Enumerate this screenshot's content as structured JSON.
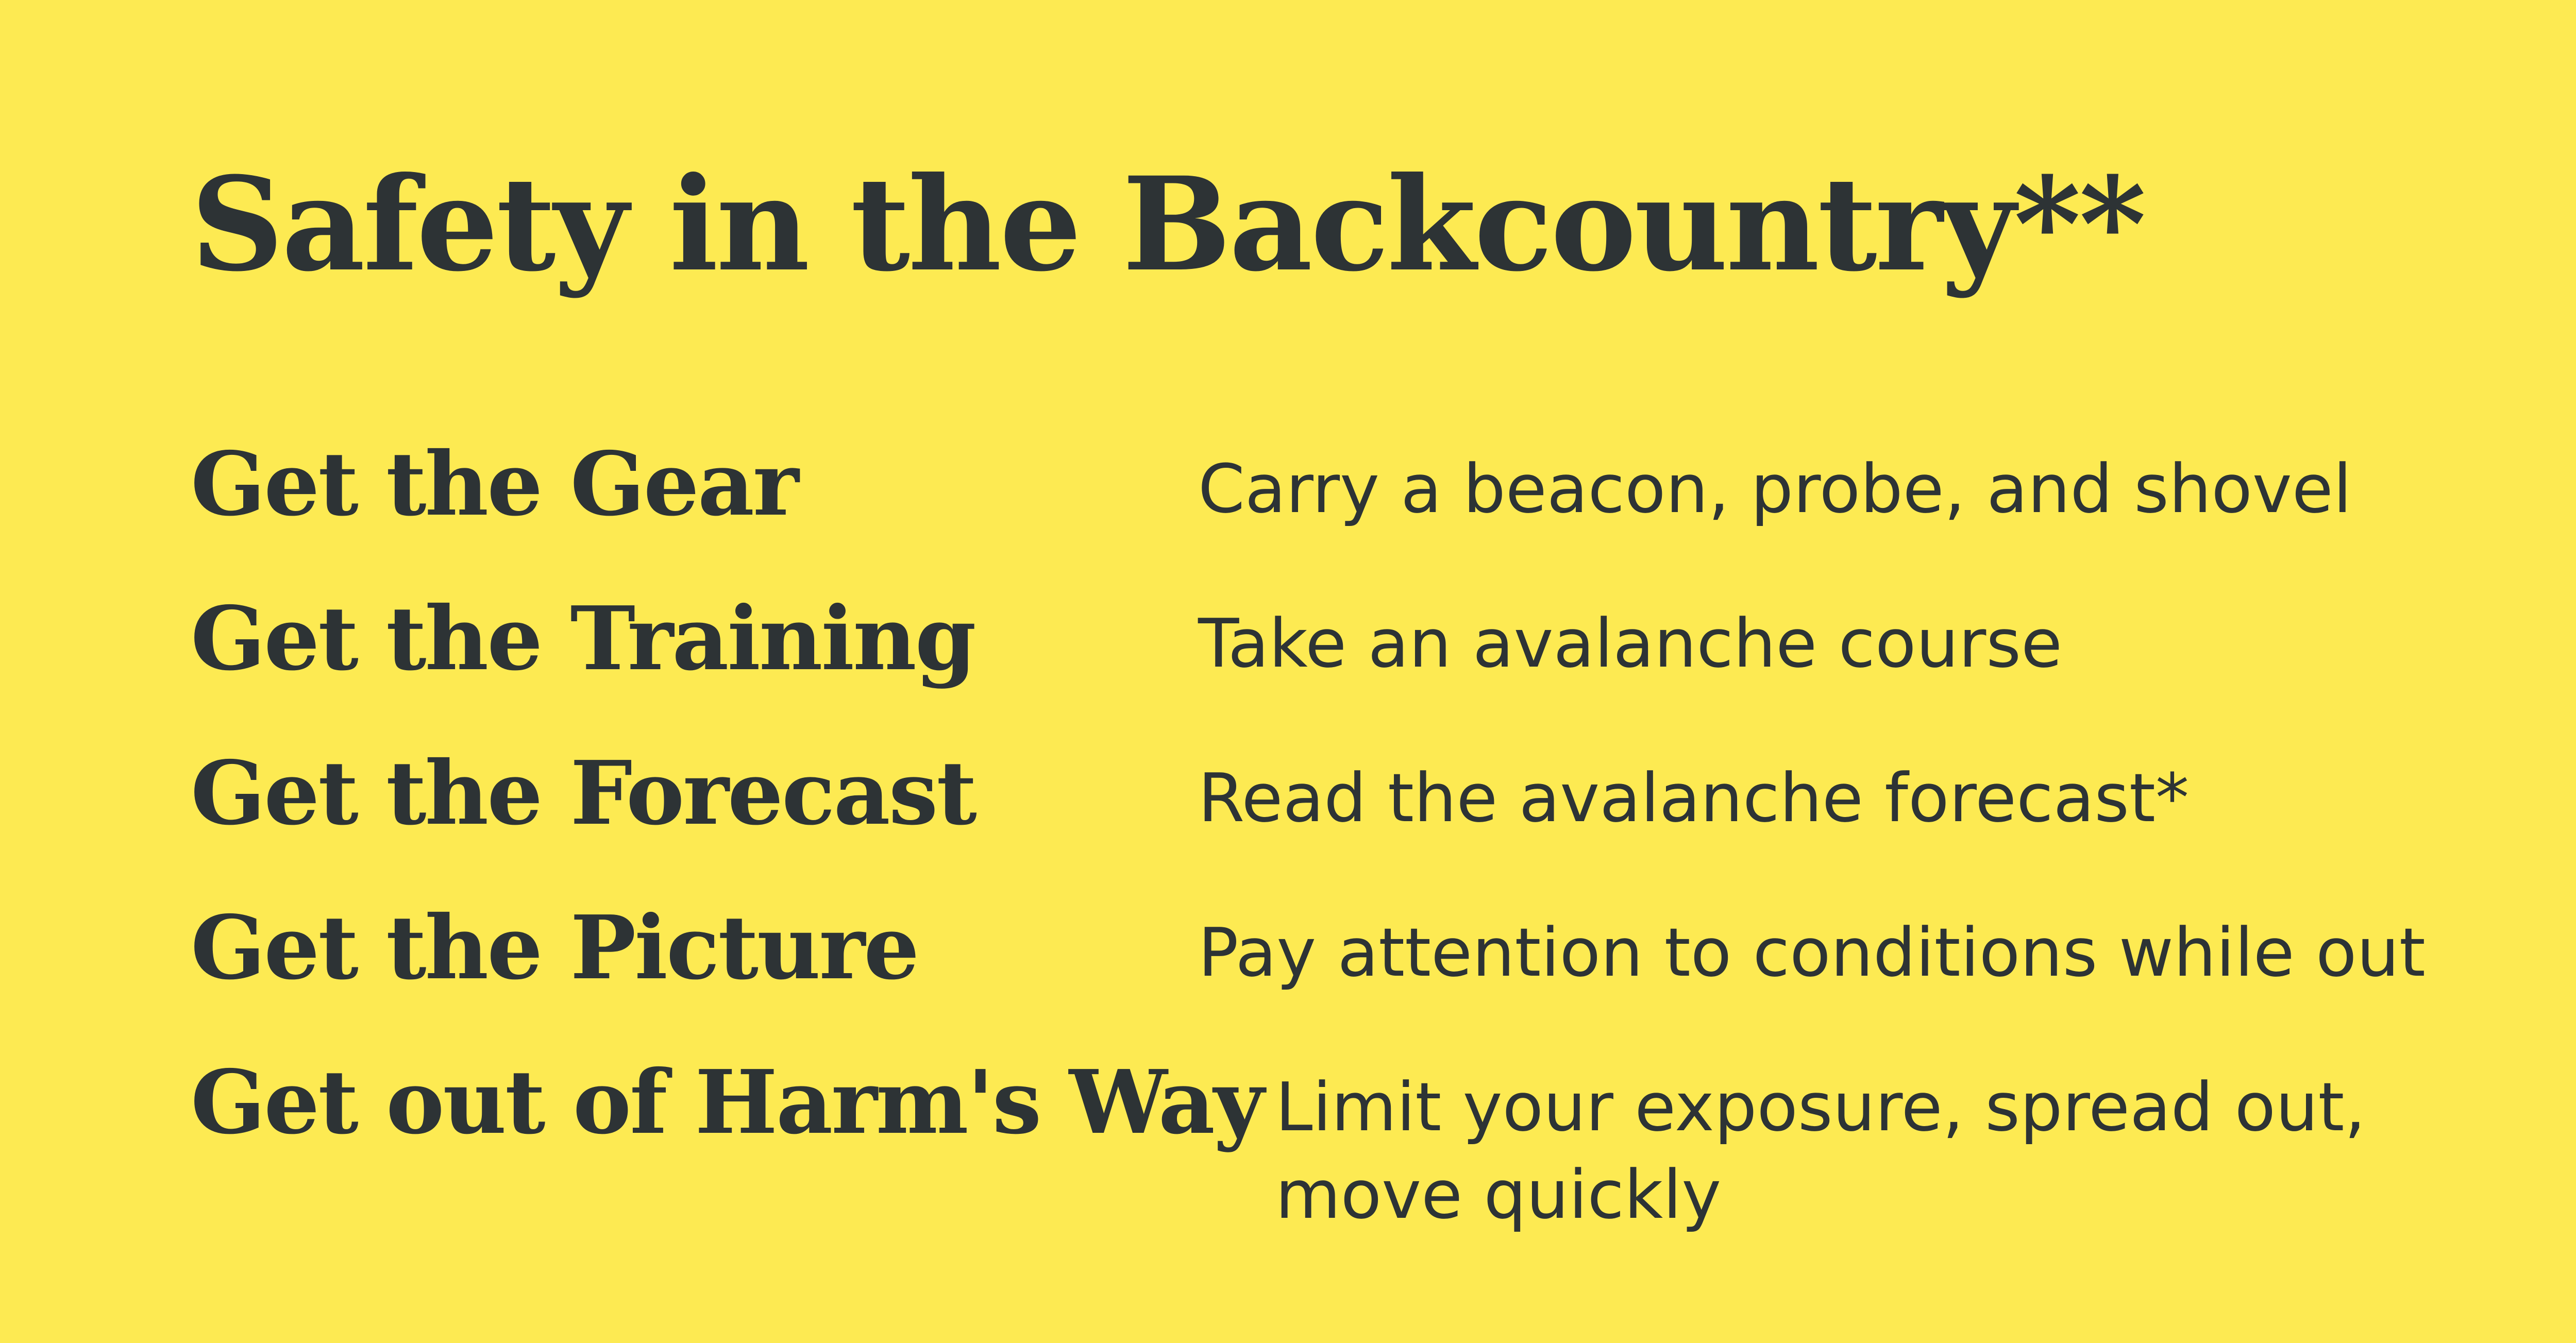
{
  "slide": {
    "title": "Safety in the Backcountry**",
    "background_color": "#FDEA52",
    "text_color": "#2D3335",
    "rows": [
      {
        "term": "Get the Gear",
        "description": "Carry a beacon, probe, and shovel"
      },
      {
        "term": "Get the Training",
        "description": "Take an avalanche course"
      },
      {
        "term": "Get the Forecast",
        "description": "Read the avalanche forecast*"
      },
      {
        "term": "Get the Picture",
        "description": "Pay attention to conditions while out"
      },
      {
        "term": "Get out of Harm's Way",
        "description_lines": [
          "Limit your exposure, spread out,",
          "move quickly"
        ]
      }
    ]
  }
}
